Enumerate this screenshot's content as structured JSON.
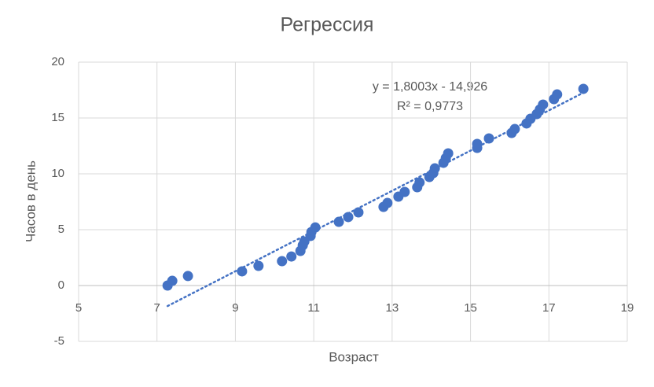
{
  "chart_data": {
    "type": "scatter",
    "title": "Регрессия",
    "x_label": "Возраст",
    "y_label": "Часов в день",
    "color": "#4472c4",
    "grid": true,
    "xlim": [
      5,
      19
    ],
    "xticks": [
      5,
      7,
      9,
      11,
      13,
      15,
      17,
      19
    ],
    "ylim": [
      -5,
      20
    ],
    "yticks": [
      -5,
      0,
      5,
      10,
      15,
      20
    ],
    "x": [
      7.27,
      7.39,
      7.79,
      9.17,
      9.59,
      10.19,
      10.43,
      10.66,
      10.72,
      10.76,
      10.92,
      10.94,
      11.04,
      11.64,
      11.88,
      12.14,
      12.78,
      12.88,
      13.16,
      13.32,
      13.64,
      13.7,
      13.95,
      14.05,
      14.09,
      14.31,
      14.37,
      14.43,
      15.17,
      15.17,
      15.47,
      16.05,
      16.13,
      16.43,
      16.53,
      16.69,
      16.77,
      16.85,
      17.13,
      17.21,
      17.88
    ],
    "values": [
      0.0,
      0.42,
      0.85,
      1.27,
      1.76,
      2.18,
      2.6,
      3.1,
      3.6,
      3.94,
      4.44,
      4.79,
      5.2,
      5.7,
      6.13,
      6.55,
      7.04,
      7.39,
      7.96,
      8.38,
      8.8,
      9.23,
      9.72,
      10.07,
      10.49,
      10.99,
      11.41,
      11.83,
      12.32,
      12.68,
      13.17,
      13.66,
      14.01,
      14.51,
      14.93,
      15.35,
      15.77,
      16.2,
      16.69,
      17.11,
      17.61
    ],
    "trendline": {
      "slope": 1.8003,
      "intercept": -14.926,
      "equation": "y = 1,8003x - 14,926",
      "r2": "R² = 0,9773"
    }
  }
}
